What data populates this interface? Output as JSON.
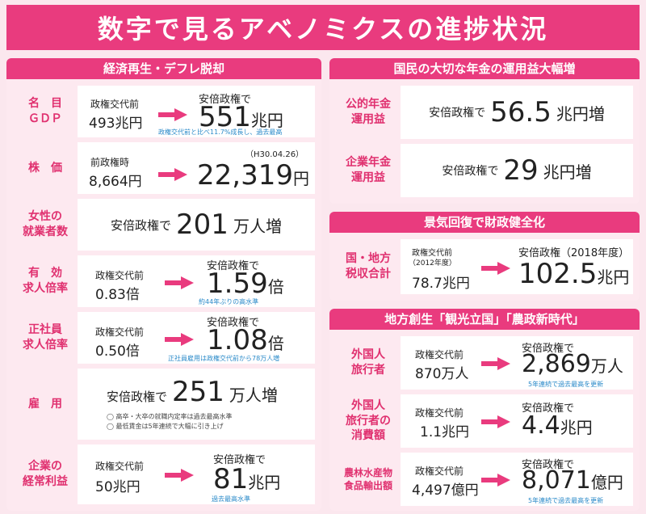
{
  "title": "数字で見るアベノミクスの進捗状況",
  "left": {
    "header": "経済再生・デフレ脱却",
    "gdp": {
      "label": "名　目\nＧＤＰ",
      "before_label": "政権交代前",
      "before_value": "493兆円",
      "after_label": "安倍政権で",
      "after_big": "551",
      "after_unit": "兆円",
      "note": "政権交代前と比べ11.7%成長し、過去最高"
    },
    "stock": {
      "label": "株　価",
      "before_label": "前政権時",
      "before_value": "8,664円",
      "date_note": "（H30.04.26）",
      "after_big": "22,319",
      "after_unit": "円"
    },
    "women": {
      "label": "女性の\n就業者数",
      "prefix": "安倍政権で",
      "big": "201",
      "unit": "万人増"
    },
    "jobs_ratio": {
      "label": "有　効\n求人倍率",
      "before_label": "政権交代前",
      "before_value": "0.83倍",
      "after_label": "安倍政権で",
      "after_big": "1.59",
      "after_unit": "倍",
      "note": "約44年ぶりの高水準"
    },
    "regular": {
      "label": "正社員\n求人倍率",
      "before_label": "政権交代前",
      "before_value": "0.50倍",
      "after_label": "安倍政権で",
      "after_big": "1.08",
      "after_unit": "倍",
      "note": "正社員雇用は政権交代前から78万人増"
    },
    "employment": {
      "label": "雇　用",
      "prefix": "安倍政権で",
      "big": "251",
      "unit": "万人増",
      "note1": "◯ 高卒・大卒の就職内定率は過去最高水準",
      "note2": "◯ 最低賃金は5年連続で大幅に引き上げ"
    },
    "profit": {
      "label": "企業の\n経常利益",
      "before_label": "政権交代前",
      "before_value": "50兆円",
      "after_label": "安倍政権で",
      "after_big": "81",
      "after_unit": "兆円",
      "note": "過去最高水準"
    }
  },
  "pension": {
    "header": "国民の大切な年金の運用益大幅増",
    "public": {
      "label": "公的年金\n運用益",
      "prefix": "安倍政権で",
      "big": "56.5",
      "unit": "兆円増"
    },
    "corporate": {
      "label": "企業年金\n運用益",
      "prefix": "安倍政権で",
      "big": "29",
      "unit": "兆円増"
    }
  },
  "fiscal": {
    "header": "景気回復で財政健全化",
    "tax": {
      "label": "国・地方\n税収合計",
      "before_label": "政権交代前",
      "before_year": "（2012年度）",
      "before_value": "78.7兆円",
      "after_label": "安倍政権（2018年度）",
      "after_big": "102.5",
      "after_unit": "兆円"
    }
  },
  "regional": {
    "header": "地方創生「観光立国」「農政新時代」",
    "visitors": {
      "label": "外国人\n旅行者",
      "before_label": "政権交代前",
      "before_value": "870万人",
      "after_label": "安倍政権で",
      "after_big": "2,869",
      "after_unit": "万人",
      "note": "5年連続で過去最高を更新"
    },
    "spending": {
      "label": "外国人\n旅行者の\n消費額",
      "before_label": "政権交代前",
      "before_value": "1.1兆円",
      "after_label": "安倍政権で",
      "after_big": "4.4",
      "after_unit": "兆円"
    },
    "exports": {
      "label": "農林水産物\n食品輸出額",
      "before_label": "政権交代前",
      "before_value": "4,497億円",
      "after_label": "安倍政権で",
      "after_big": "8,071",
      "after_unit": "億円",
      "note": "5年連続で過去最高を更新"
    }
  }
}
